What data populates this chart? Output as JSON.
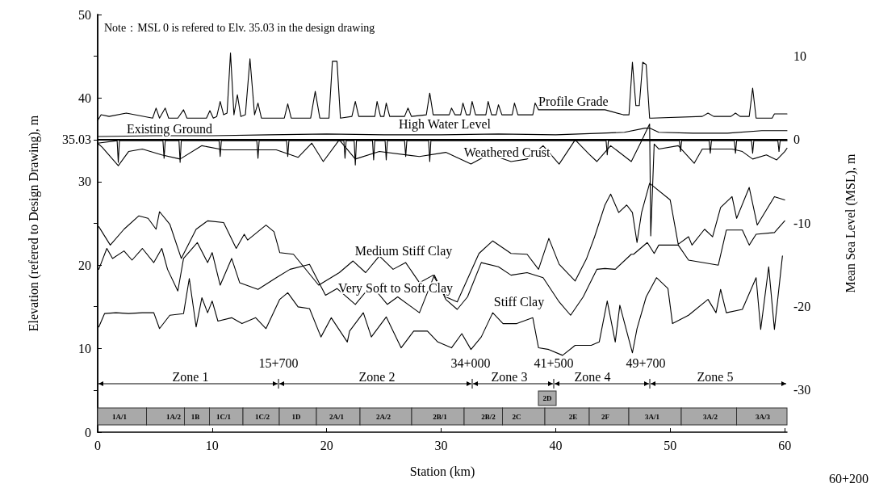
{
  "chart_data": {
    "type": "line",
    "xlabel": "Station (km)",
    "ylabel": "Elevation (refered to Design Drawing), m",
    "y2label": "Mean Sea Level (MSL), m",
    "xlim": [
      0,
      60.2
    ],
    "xticks": [
      0,
      10,
      20,
      30,
      40,
      50,
      60
    ],
    "ylim": [
      0,
      50
    ],
    "yticks": [
      0,
      10,
      20,
      30,
      35.03,
      40,
      50
    ],
    "y2lim": [
      -35.03,
      14.97
    ],
    "y2ticks": [
      -30,
      -20,
      -10,
      0,
      10
    ],
    "marker": "none",
    "line_style": "solid",
    "ref_lines": [
      {
        "axis": "y",
        "value": 35.03,
        "color": "#000000"
      }
    ],
    "series": [
      {
        "color": "#000000",
        "x": [
          0,
          0.3,
          1.0,
          2.5,
          4.8,
          5.1,
          5.4,
          5.9,
          6.2,
          7.0,
          7.5,
          7.8,
          9.5,
          9.8,
          10.1,
          10.4,
          10.7,
          11.0,
          11.3,
          11.6,
          11.9,
          12.2,
          12.5,
          12.9,
          13.3,
          13.7,
          14.0,
          14.3,
          16.3,
          16.6,
          16.9,
          18.6,
          19.0,
          19.4,
          20.2,
          20.5,
          20.9,
          21.2,
          22.2,
          22.5,
          22.8,
          24.2,
          24.4,
          24.7,
          25.0,
          25.2,
          25.5,
          26.8,
          27.1,
          27.4,
          28.7,
          29.0,
          29.3,
          30.7,
          30.9,
          31.2,
          31.7,
          31.9,
          32.2,
          32.5,
          32.7,
          33.0,
          33.9,
          34.1,
          34.4,
          34.8,
          35.0,
          35.3,
          36.2,
          36.4,
          36.7,
          38.0,
          38.2,
          38.5,
          44.3,
          45.9,
          46.4,
          46.7,
          47.0,
          47.3,
          47.6,
          47.9,
          48.2,
          48.4,
          52.8,
          53.3,
          53.8,
          55.3,
          55.7,
          56.1,
          56.9,
          57.2,
          57.5,
          58.9,
          59.1,
          60.2
        ],
        "values": [
          37.3,
          38.0,
          37.8,
          38.2,
          37.6,
          38.8,
          37.6,
          38.8,
          37.6,
          37.6,
          38.6,
          37.6,
          37.6,
          38.5,
          37.6,
          37.8,
          39.6,
          38.0,
          38.2,
          45.4,
          38.0,
          40.4,
          37.8,
          38.0,
          44.7,
          38.0,
          39.4,
          37.6,
          37.6,
          39.3,
          37.6,
          37.6,
          40.8,
          37.6,
          37.6,
          44.4,
          44.4,
          37.6,
          37.8,
          39.6,
          37.8,
          37.8,
          39.6,
          37.8,
          37.8,
          39.4,
          37.8,
          37.8,
          38.8,
          37.8,
          38.0,
          40.6,
          38.0,
          38.0,
          38.8,
          38.0,
          38.0,
          39.4,
          38.0,
          38.0,
          39.6,
          38.0,
          38.0,
          39.6,
          38.0,
          38.0,
          39.2,
          38.0,
          38.0,
          39.4,
          38.0,
          38.0,
          39.4,
          38.6,
          38.6,
          38.0,
          38.0,
          44.3,
          39.1,
          39.1,
          44.3,
          44.0,
          37.6,
          37.6,
          37.8,
          38.2,
          37.8,
          37.8,
          38.2,
          37.8,
          37.8,
          41.2,
          37.6,
          37.6,
          38.1,
          38.1
        ]
      },
      {
        "color": "#000000",
        "x": [
          0,
          5,
          10,
          15,
          20,
          25,
          30,
          35,
          40,
          44,
          46,
          47.8,
          48.2,
          49,
          52,
          55,
          58,
          60.2
        ],
        "values": [
          35.4,
          35.5,
          35.5,
          35.6,
          35.7,
          35.6,
          35.6,
          35.7,
          35.6,
          35.8,
          35.9,
          36.4,
          36.4,
          35.9,
          35.8,
          35.8,
          36.1,
          36.1
        ]
      },
      {
        "color": "#000000",
        "x": [
          0,
          1.7,
          1.8,
          1.9,
          5.7,
          5.8,
          5.9,
          7.1,
          7.2,
          7.3,
          10.6,
          10.7,
          10.8,
          13.9,
          14.0,
          14.1,
          16.5,
          16.6,
          16.7,
          21.5,
          21.6,
          21.7,
          22.4,
          22.5,
          22.6,
          24.0,
          24.1,
          24.2,
          25.1,
          25.2,
          25.3,
          26.8,
          26.9,
          27.0,
          28.9,
          29.0,
          29.1,
          44.4,
          44.5,
          44.6,
          50.8,
          50.9,
          51.0,
          53.4,
          53.5,
          53.6,
          55.6,
          55.7,
          55.8,
          57.1,
          57.2,
          57.3,
          59.4,
          59.5,
          59.6,
          60.2
        ],
        "values": [
          34.6,
          34.9,
          32.3,
          34.9,
          34.9,
          32.8,
          34.9,
          34.9,
          32.3,
          34.9,
          34.9,
          33.0,
          34.9,
          34.9,
          32.8,
          34.9,
          34.9,
          33.0,
          34.9,
          34.9,
          32.8,
          34.9,
          34.9,
          32.0,
          34.9,
          34.9,
          32.6,
          34.9,
          34.9,
          32.6,
          34.9,
          34.9,
          33.0,
          34.9,
          34.9,
          32.4,
          34.9,
          34.9,
          33.2,
          34.9,
          34.9,
          33.6,
          34.9,
          34.9,
          33.4,
          34.9,
          34.9,
          33.4,
          34.9,
          34.9,
          33.4,
          34.9,
          34.9,
          33.6,
          34.9,
          34.9
        ]
      },
      {
        "color": "#000000",
        "x": [
          0,
          0.4,
          1.8,
          2.7,
          3.9,
          5.6,
          7.2,
          9.1,
          11.0,
          15.6,
          17.5,
          18.7,
          19.7,
          21.1,
          22.5,
          24.6,
          28.1,
          30.4,
          32.6,
          34.2,
          36.1,
          37.5,
          38.9,
          40.3,
          41.7,
          42.9,
          43.6,
          44.8,
          46.6,
          47.4,
          48.2,
          48.3,
          48.6,
          49.0,
          50.7,
          52.1,
          52.8,
          55.4,
          56.3,
          57.2,
          58.4,
          59.3,
          60.0,
          60.2
        ],
        "values": [
          34.6,
          34.1,
          31.9,
          33.6,
          33.9,
          33.2,
          32.7,
          34.3,
          33.8,
          33.8,
          32.9,
          34.6,
          32.4,
          35.0,
          32.7,
          33.6,
          33.0,
          33.5,
          32.1,
          33.3,
          32.4,
          32.7,
          34.3,
          32.1,
          35.0,
          33.3,
          32.4,
          34.3,
          32.4,
          34.6,
          36.9,
          23.5,
          34.5,
          33.9,
          34.3,
          32.2,
          33.9,
          33.9,
          33.6,
          32.7,
          33.2,
          32.6,
          33.6,
          34.0
        ]
      },
      {
        "color": "#000000",
        "x": [
          0.1,
          1.1,
          2.3,
          3.6,
          4.4,
          5.1,
          5.4,
          6.3,
          7.3,
          8.6,
          9.6,
          11.0,
          12.1,
          12.8,
          13.1,
          14.7,
          15.4,
          15.9,
          17.1,
          19.3,
          21.1,
          22.3,
          23.4,
          24.6,
          25.8,
          26.9,
          28.1,
          29.3,
          30.4,
          31.4,
          33.3,
          34.5,
          36.1,
          37.5,
          38.5,
          39.4,
          40.3,
          41.7,
          42.7,
          43.4,
          44.3,
          44.8,
          45.5,
          46.2,
          46.7,
          47.1,
          47.5,
          48.2,
          50.0,
          50.7,
          51.6,
          51.9,
          53.0,
          53.7,
          54.4,
          55.4,
          55.8,
          56.9,
          57.6,
          59.1,
          60.0
        ],
        "values": [
          24.6,
          22.4,
          24.3,
          25.9,
          25.6,
          24.3,
          26.4,
          24.9,
          20.8,
          24.3,
          25.3,
          25.1,
          22.0,
          23.7,
          23.0,
          24.8,
          24.0,
          21.5,
          21.3,
          17.6,
          19.1,
          20.5,
          19.1,
          21.1,
          19.5,
          20.3,
          17.9,
          18.8,
          16.2,
          15.6,
          21.4,
          22.9,
          21.4,
          21.3,
          19.5,
          23.2,
          20.1,
          18.1,
          20.8,
          23.4,
          27.2,
          28.5,
          26.3,
          27.2,
          26.3,
          22.7,
          26.3,
          29.8,
          27.8,
          22.5,
          23.4,
          22.4,
          24.3,
          23.4,
          26.9,
          28.2,
          25.6,
          29.3,
          24.8,
          28.2,
          27.8
        ]
      },
      {
        "color": "#000000",
        "x": [
          0.1,
          0.8,
          1.3,
          2.3,
          3.0,
          3.9,
          4.9,
          5.6,
          6.1,
          7.0,
          7.5,
          8.7,
          9.6,
          10.0,
          10.7,
          11.7,
          12.4,
          14.0,
          15.6,
          16.8,
          18.5,
          19.9,
          20.9,
          22.5,
          23.9,
          25.3,
          26.2,
          28.1,
          29.4,
          30.4,
          31.4,
          32.3,
          33.5,
          35.0,
          36.1,
          37.5,
          38.9,
          40.3,
          41.3,
          42.4,
          43.6,
          44.3,
          45.2,
          46.6,
          46.8,
          48.0,
          48.6,
          49.0,
          50.7,
          51.6,
          54.2,
          54.9,
          56.3,
          56.9,
          57.5,
          59.1,
          60.0
        ],
        "values": [
          19.5,
          22.0,
          20.8,
          21.7,
          20.6,
          22.0,
          20.3,
          22.0,
          19.5,
          16.9,
          20.8,
          22.7,
          20.3,
          21.5,
          17.6,
          20.8,
          17.9,
          17.1,
          18.5,
          19.5,
          20.1,
          16.4,
          17.2,
          15.3,
          17.6,
          15.3,
          16.2,
          14.3,
          18.8,
          15.9,
          14.7,
          16.2,
          20.3,
          19.8,
          18.8,
          19.1,
          18.5,
          15.6,
          14.0,
          16.2,
          19.5,
          19.6,
          19.5,
          21.3,
          21.3,
          22.7,
          21.4,
          22.4,
          22.4,
          20.6,
          20.0,
          24.2,
          24.2,
          22.4,
          23.7,
          23.9,
          25.3
        ]
      },
      {
        "color": "#000000",
        "x": [
          0.1,
          0.6,
          1.6,
          2.7,
          3.9,
          4.9,
          5.4,
          6.3,
          7.5,
          8.0,
          8.6,
          9.1,
          9.6,
          10.0,
          10.5,
          11.7,
          12.6,
          13.8,
          14.7,
          15.9,
          16.6,
          17.5,
          18.5,
          19.5,
          20.4,
          21.8,
          22.0,
          23.2,
          23.9,
          25.2,
          26.5,
          27.6,
          28.8,
          29.7,
          30.9,
          31.8,
          32.6,
          33.5,
          34.5,
          35.4,
          36.6,
          38.0,
          38.5,
          39.4,
          40.6,
          41.7,
          43.1,
          43.8,
          44.5,
          45.2,
          45.6,
          46.7,
          47.1,
          47.9,
          48.8,
          49.8,
          50.2,
          51.6,
          53.3,
          54.0,
          54.4,
          54.9,
          56.3,
          57.5,
          57.9,
          58.6,
          59.1,
          59.8
        ],
        "values": [
          12.6,
          14.2,
          14.3,
          14.2,
          14.3,
          14.3,
          12.4,
          14.0,
          14.2,
          18.4,
          12.6,
          16.1,
          14.3,
          15.7,
          13.3,
          13.7,
          13.0,
          13.7,
          12.4,
          15.9,
          16.7,
          15.0,
          14.8,
          11.4,
          13.7,
          10.8,
          12.1,
          14.3,
          11.4,
          13.8,
          10.1,
          12.1,
          12.1,
          10.8,
          10.1,
          11.8,
          9.9,
          11.4,
          14.3,
          13.0,
          13.0,
          13.7,
          10.1,
          9.9,
          9.2,
          10.4,
          10.4,
          10.8,
          15.7,
          10.8,
          15.2,
          9.5,
          12.4,
          16.2,
          18.5,
          17.2,
          13.0,
          14.0,
          15.9,
          14.3,
          17.1,
          14.3,
          14.7,
          18.5,
          12.3,
          19.8,
          12.3,
          21.1
        ]
      }
    ],
    "annotations": [
      "Note：MSL 0 is refered to Elv. 35.03 in the design drawing",
      "60+200",
      "Profile Grade",
      "High Water Level",
      "Existing Ground",
      "Weathered Crust",
      "Medium Stiff Clay",
      "Very Soft to Soft Clay",
      "Stiff Clay",
      "15+700",
      "34+000",
      "41+500",
      "49+700",
      "Zone 1",
      "Zone 2",
      "Zone 3",
      "Zone 4",
      "Zone 5",
      "1A/1",
      "1A/2",
      "1B",
      "1C/1",
      "1C/2",
      "1D",
      "2A/1",
      "2A/2",
      "2B/1",
      "2B/2",
      "2C",
      "2E",
      "2F",
      "3A/1",
      "3A/2",
      "3A/3",
      "2D"
    ]
  }
}
